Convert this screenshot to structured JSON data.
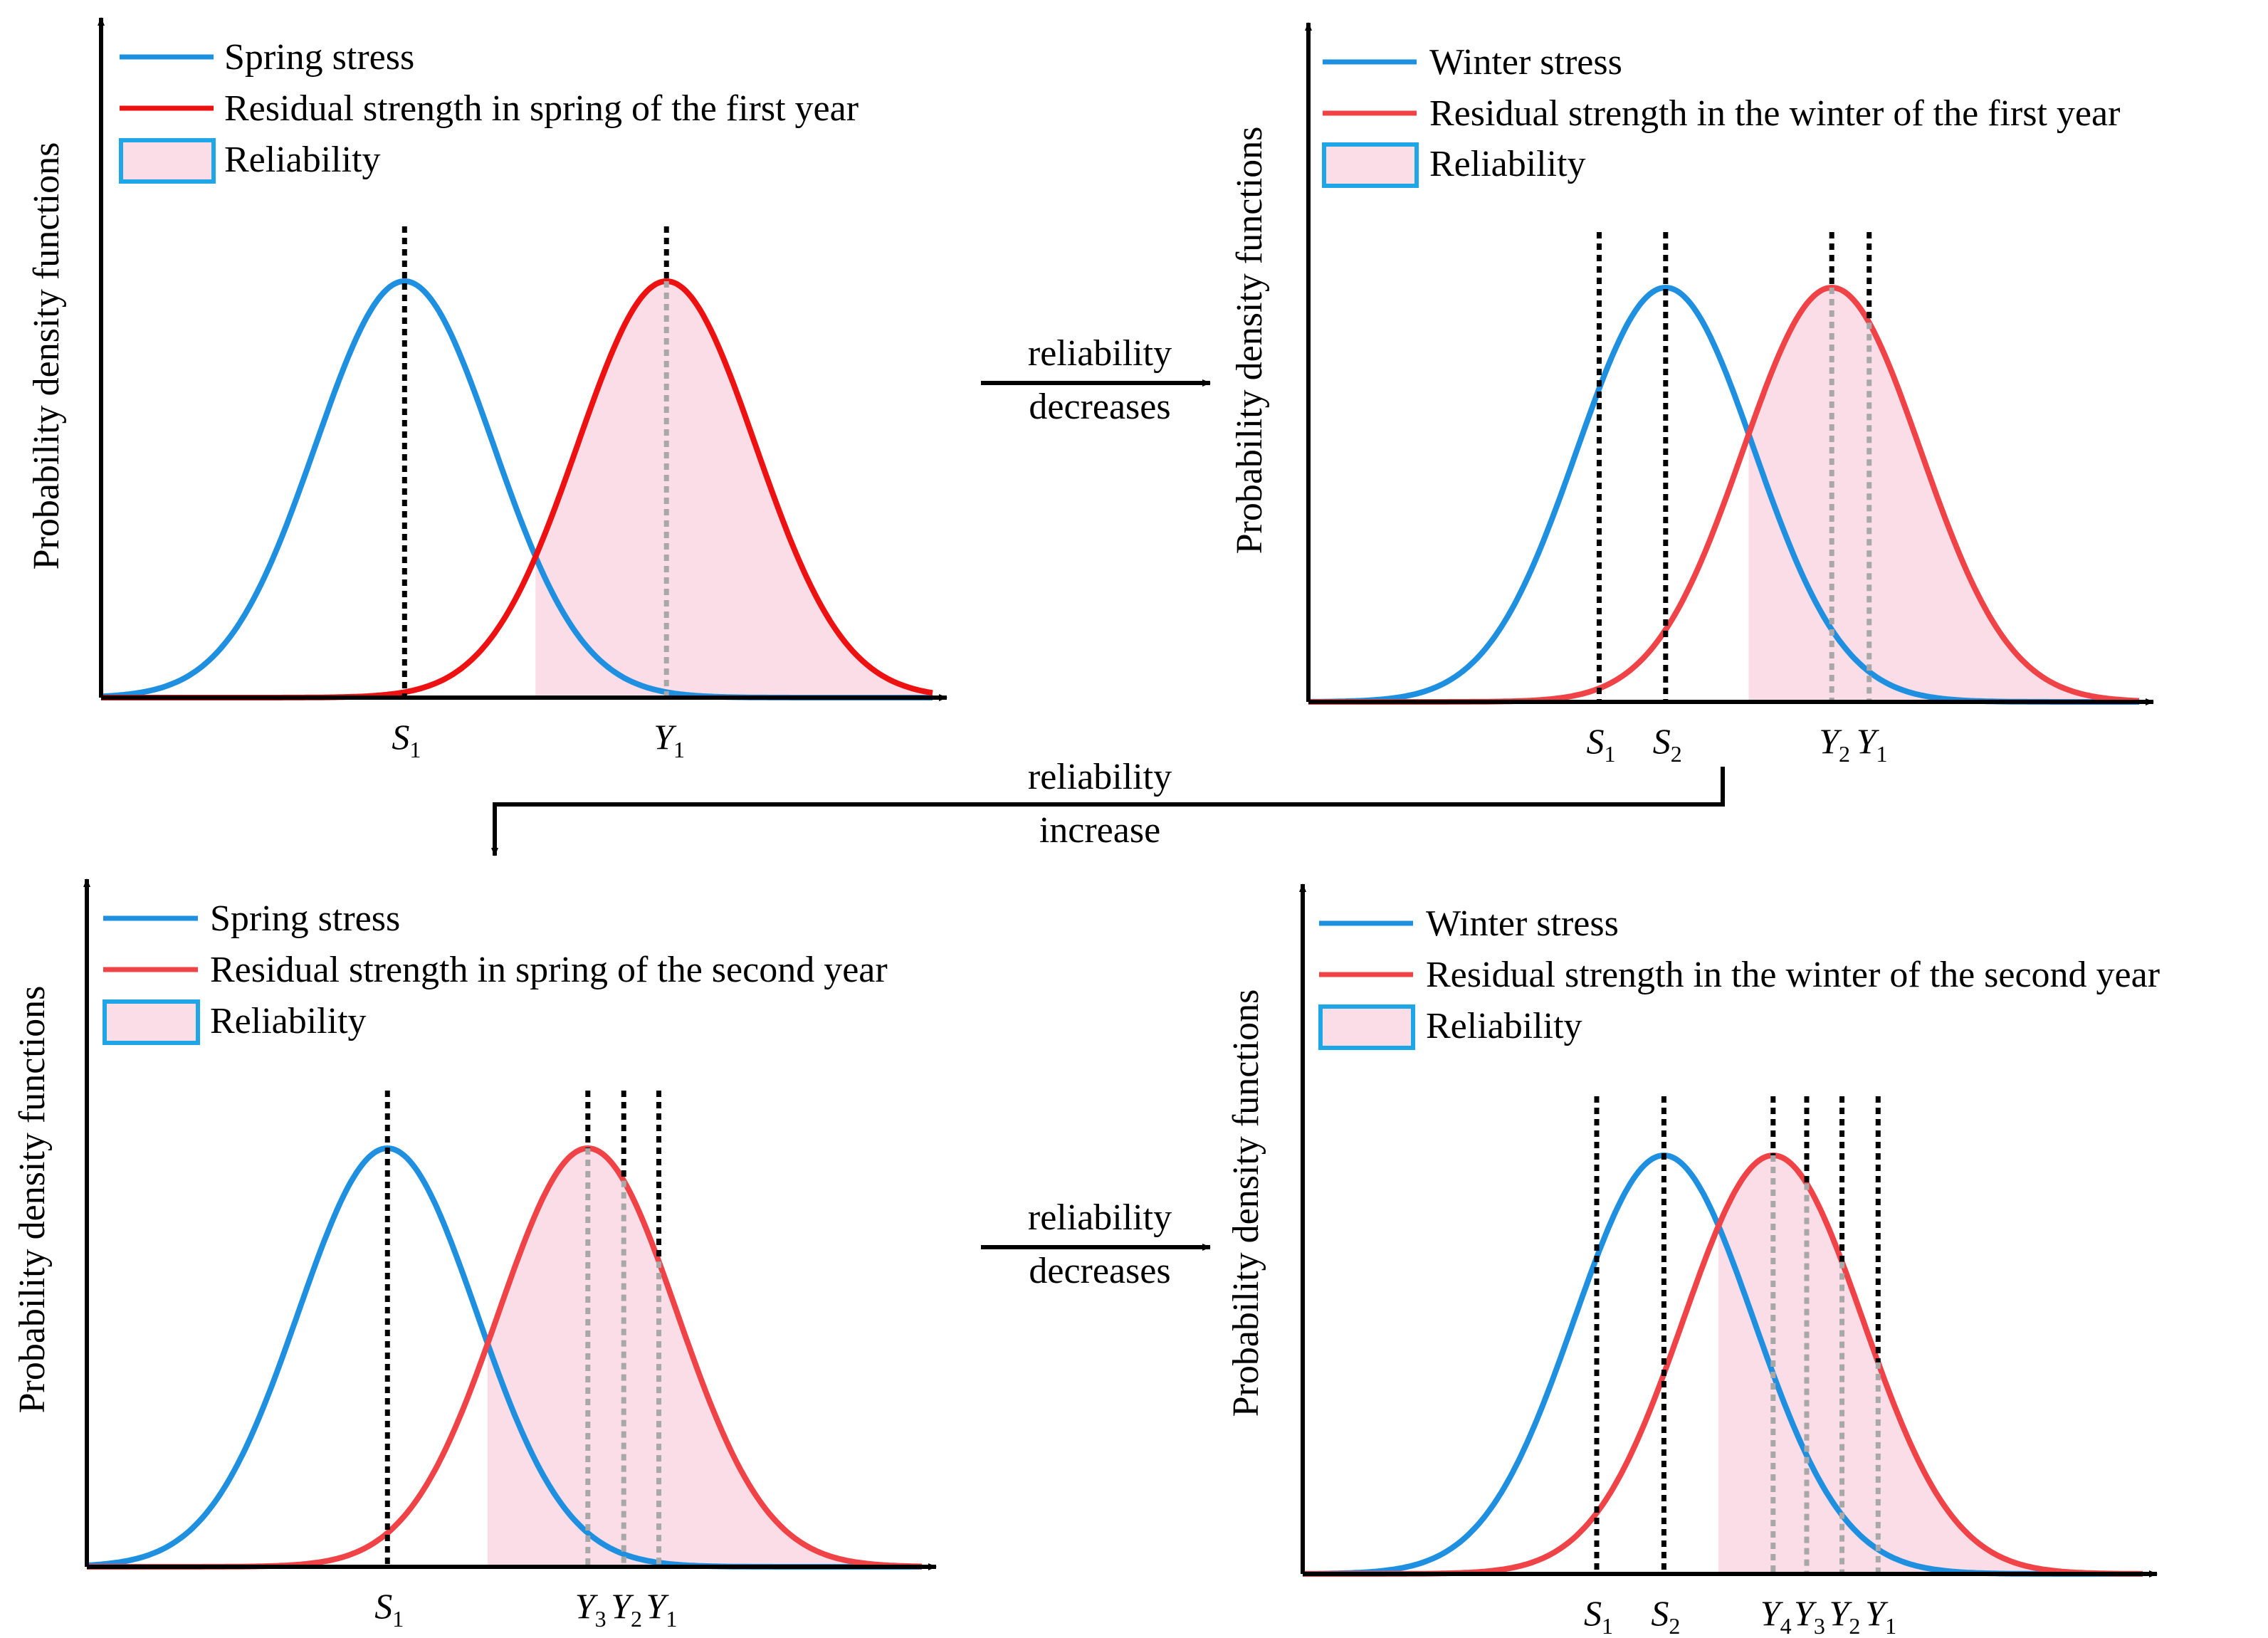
{
  "colors": {
    "stress": "#1f8fe0",
    "strength": "#ef4347",
    "strength_first": "#ee1111",
    "reliability_fill": "#fbdde7",
    "reliability_border": "#1ea6e6",
    "axis": "#000000"
  },
  "figure": {
    "y_axis_label": "Probability density functions",
    "panels": [
      {
        "id": "spring-first-year",
        "legend": {
          "stress": "Spring stress",
          "strength": "Residual strength in spring of the first year",
          "reliability": "Reliability"
        },
        "stress_mean": 0.365,
        "strength_mean": 0.68,
        "markers": [
          {
            "main": "S",
            "sub": "1",
            "pos": 0.365
          },
          {
            "main": "Y",
            "sub": "1",
            "pos": 0.68
          }
        ]
      },
      {
        "id": "winter-first-year",
        "legend": {
          "stress": "Winter stress",
          "strength": "Residual strength in the winter of the first year",
          "reliability": "Reliability"
        },
        "stress_mean": 0.43,
        "strength_mean": 0.63,
        "markers": [
          {
            "main": "S",
            "sub": "1",
            "pos": 0.35
          },
          {
            "main": "S",
            "sub": "2",
            "pos": 0.43
          },
          {
            "main": "Y",
            "sub": "2",
            "pos": 0.63
          },
          {
            "main": "Y",
            "sub": "1",
            "pos": 0.675
          }
        ]
      },
      {
        "id": "spring-second-year",
        "legend": {
          "stress": "Spring stress",
          "strength": "Residual strength in spring of the second year",
          "reliability": "Reliability"
        },
        "stress_mean": 0.36,
        "strength_mean": 0.6,
        "markers": [
          {
            "main": "S",
            "sub": "1",
            "pos": 0.36
          },
          {
            "main": "Y",
            "sub": "3",
            "pos": 0.6
          },
          {
            "main": "Y",
            "sub": "2",
            "pos": 0.643
          },
          {
            "main": "Y",
            "sub": "1",
            "pos": 0.685
          }
        ]
      },
      {
        "id": "winter-second-year",
        "legend": {
          "stress": "Winter stress",
          "strength": "Residual strength in the winter of the second year",
          "reliability": "Reliability"
        },
        "stress_mean": 0.43,
        "strength_mean": 0.56,
        "markers": [
          {
            "main": "S",
            "sub": "1",
            "pos": 0.35
          },
          {
            "main": "S",
            "sub": "2",
            "pos": 0.43
          },
          {
            "main": "Y",
            "sub": "4",
            "pos": 0.56
          },
          {
            "main": "Y",
            "sub": "3",
            "pos": 0.6
          },
          {
            "main": "Y",
            "sub": "2",
            "pos": 0.642
          },
          {
            "main": "Y",
            "sub": "1",
            "pos": 0.685
          }
        ]
      }
    ],
    "transitions": {
      "first": {
        "line1": "reliability",
        "line2": "decreases"
      },
      "second": {
        "line1": "reliability",
        "line2": "increase"
      },
      "third": {
        "line1": "reliability",
        "line2": "decreases"
      }
    }
  }
}
